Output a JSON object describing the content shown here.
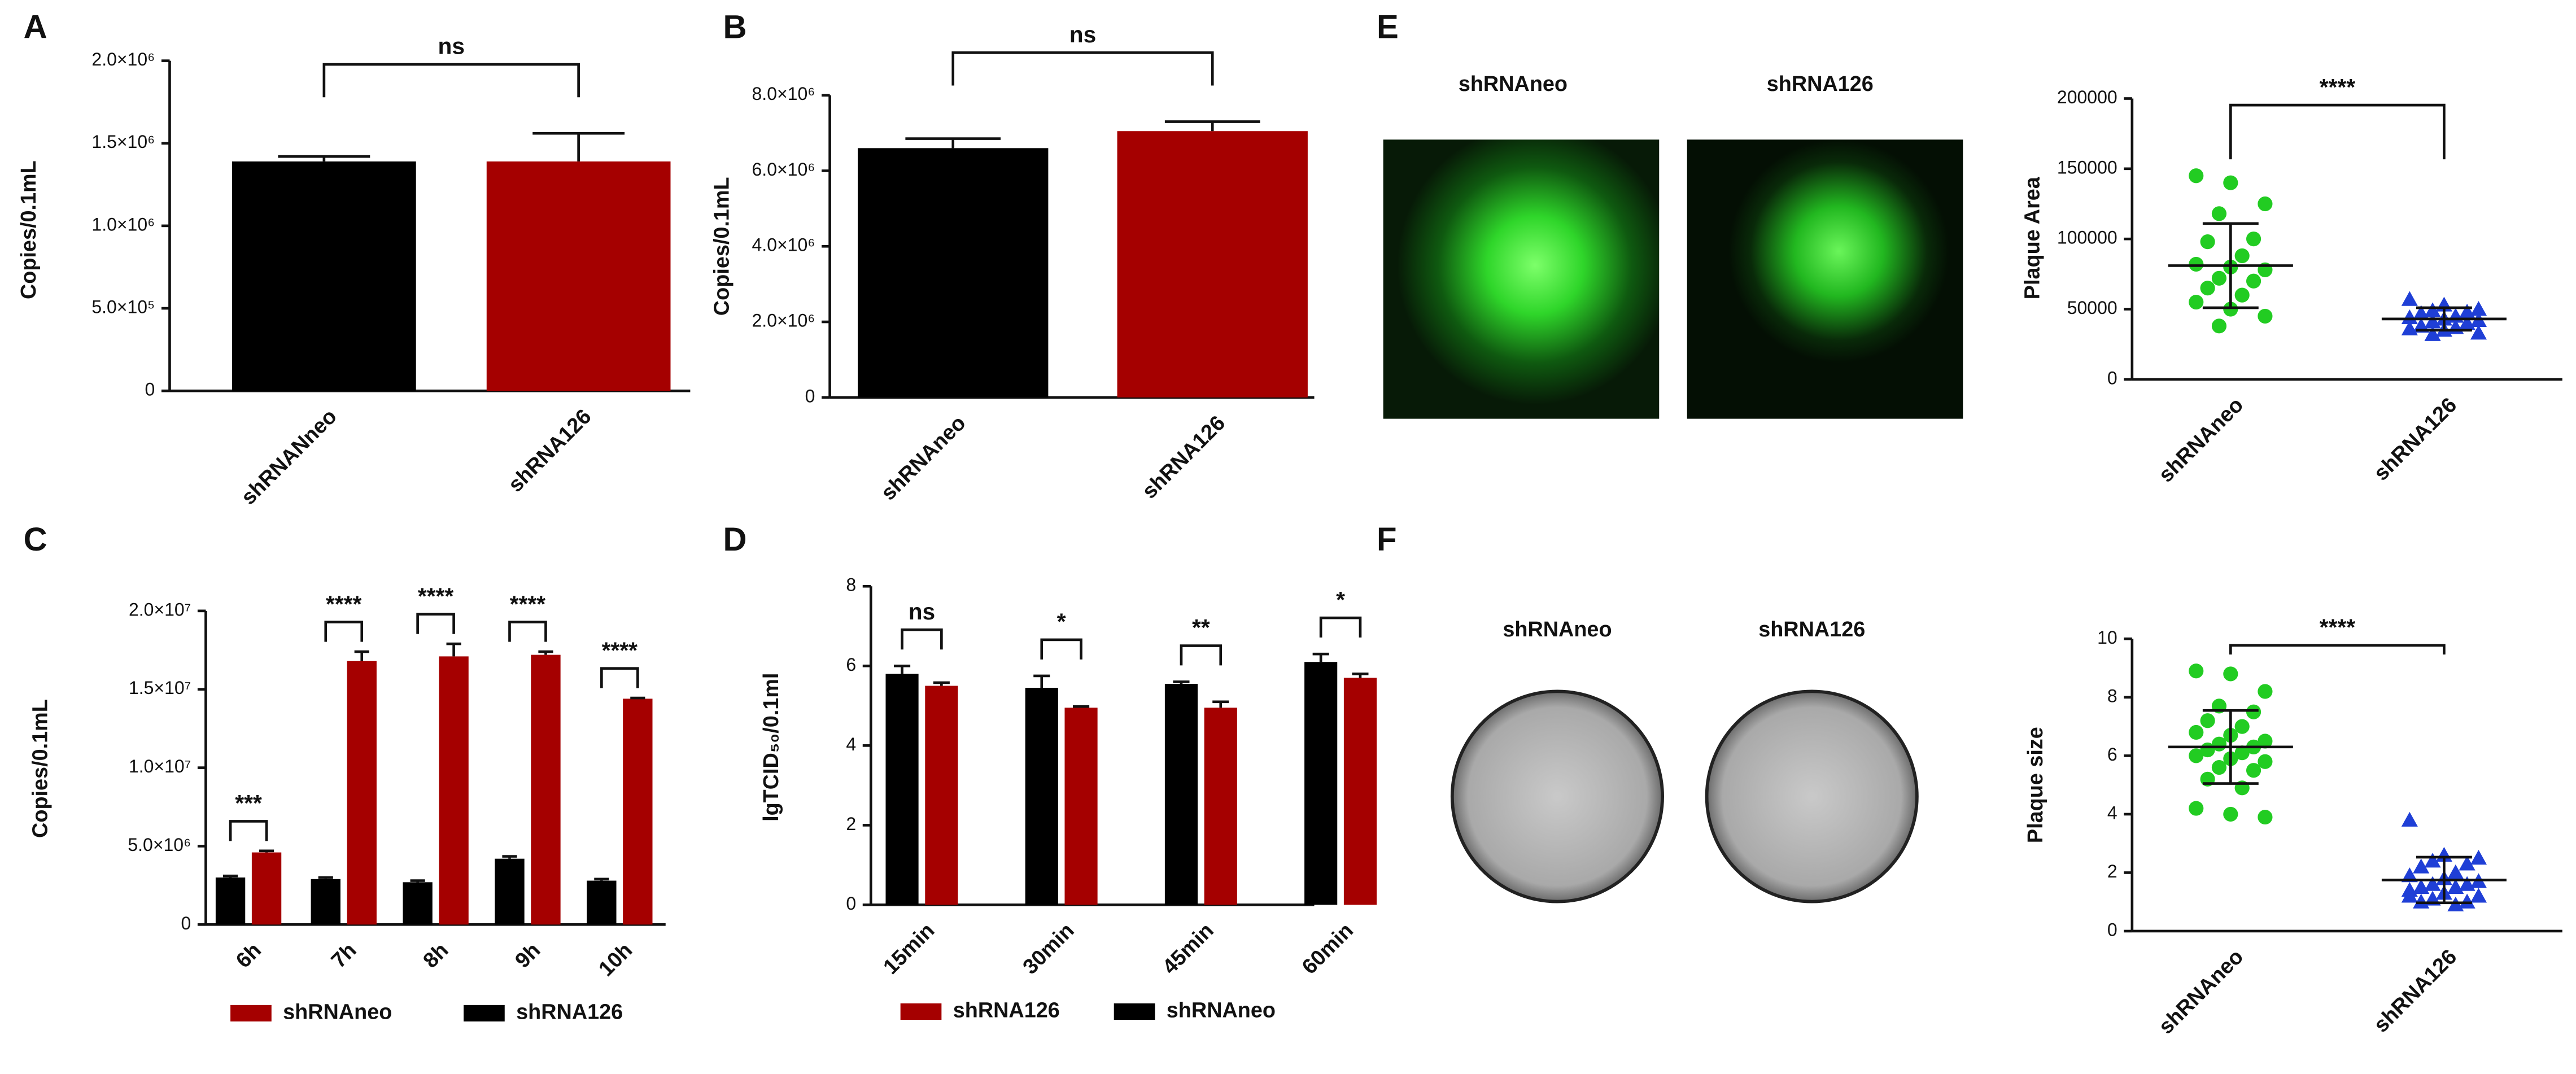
{
  "chart_data": [
    {
      "panel": "A",
      "type": "bar",
      "y_label": "Copies/0.1mL",
      "categories": [
        "shRNANneo",
        "shRNA126"
      ],
      "values": [
        1390000,
        1390000
      ],
      "errors": [
        30000,
        170000
      ],
      "colors": [
        "#000000",
        "#a50000"
      ],
      "annotations": [
        "ns"
      ],
      "ylim": [
        0,
        2000000
      ],
      "yticks": [
        0,
        {
          "value": 500000,
          "label": "5.0×10⁵"
        },
        {
          "value": 1000000,
          "label": "1.0×10⁶"
        },
        {
          "value": 1500000,
          "label": "1.5×10⁶"
        },
        {
          "value": 2000000,
          "label": "2.0×10⁶"
        }
      ]
    },
    {
      "panel": "B",
      "type": "bar",
      "y_label": "Copies/0.1mL",
      "categories": [
        "shRNAneo",
        "shRNA126"
      ],
      "values": [
        6600000,
        7050000
      ],
      "errors": [
        250000,
        250000
      ],
      "colors": [
        "#000000",
        "#a50000"
      ],
      "annotations": [
        "ns"
      ],
      "ylim": [
        0,
        8000000
      ],
      "yticks": [
        0,
        {
          "value": 2000000,
          "label": "2.0×10⁶"
        },
        {
          "value": 4000000,
          "label": "4.0×10⁶"
        },
        {
          "value": 6000000,
          "label": "6.0×10⁶"
        },
        {
          "value": 8000000,
          "label": "8.0×10⁶"
        }
      ]
    },
    {
      "panel": "C",
      "type": "bar",
      "y_label": "Copies/0.1mL",
      "categories": [
        "6h",
        "7h",
        "8h",
        "9h",
        "10h"
      ],
      "series": [
        {
          "name": "shRNAneo",
          "color": "#a50000",
          "values": [
            4600000,
            16800000,
            17100000,
            17200000,
            14400000
          ],
          "errors": [
            100000,
            600000,
            800000,
            200000,
            50000
          ]
        },
        {
          "name": "shRNA126",
          "color": "#000000",
          "values": [
            3000000,
            2900000,
            2700000,
            4200000,
            2800000
          ],
          "errors": [
            100000,
            100000,
            100000,
            150000,
            100000
          ]
        }
      ],
      "annotations": [
        "***",
        "****",
        "****",
        "****",
        "****"
      ],
      "ylim": [
        0,
        20000000
      ],
      "yticks": [
        0,
        {
          "value": 5000000,
          "label": "5.0×10⁶"
        },
        {
          "value": 10000000,
          "label": "1.0×10⁷"
        },
        {
          "value": 15000000,
          "label": "1.5×10⁷"
        },
        {
          "value": 20000000,
          "label": "2.0×10⁷"
        }
      ]
    },
    {
      "panel": "D",
      "type": "bar",
      "y_label": "lgTCID₅₀/0.1ml",
      "categories": [
        "15min",
        "30min",
        "45min",
        "60min"
      ],
      "series": [
        {
          "name": "shRNA126",
          "color": "#a50000",
          "values": [
            5.5,
            4.95,
            4.95,
            5.7
          ],
          "errors": [
            0.08,
            0.03,
            0.15,
            0.1
          ]
        },
        {
          "name": "shRNAneo",
          "color": "#000000",
          "values": [
            5.8,
            5.45,
            5.55,
            6.1
          ],
          "errors": [
            0.2,
            0.3,
            0.05,
            0.2
          ]
        }
      ],
      "annotations": [
        "ns",
        "*",
        "**",
        "*"
      ],
      "ylim": [
        0,
        8
      ],
      "yticks": [
        0,
        2,
        4,
        6,
        8
      ]
    },
    {
      "panel": "E",
      "type": "dotplot",
      "y_label": "Plaque Area",
      "image_labels": [
        "shRNAneo",
        "shRNA126"
      ],
      "categories": [
        "shRNAneo",
        "shRNA126"
      ],
      "groups": [
        {
          "color": "#22cc22",
          "marker": "circle",
          "mean": 81000,
          "sd": 30000,
          "values": [
            145000,
            140000,
            125000,
            118000,
            100000,
            98000,
            88000,
            82000,
            80000,
            78000,
            72000,
            70000,
            65000,
            60000,
            55000,
            50000,
            45000,
            38000
          ]
        },
        {
          "color": "#1f3fd6",
          "marker": "triangle",
          "mean": 43000,
          "sd": 8000,
          "values": [
            57000,
            53000,
            50000,
            49000,
            48000,
            47000,
            45000,
            44000,
            43000,
            42000,
            41000,
            40000,
            38000,
            37000,
            36000,
            35000,
            33000,
            32000
          ]
        }
      ],
      "annotations": [
        "****"
      ],
      "ylim": [
        0,
        200000
      ],
      "yticks": [
        0,
        50000,
        100000,
        150000,
        200000
      ]
    },
    {
      "panel": "F",
      "type": "dotplot",
      "y_label": "Plaque size",
      "image_labels": [
        "shRNAneo",
        "shRNA126"
      ],
      "categories": [
        "shRNAneo",
        "shRNA126"
      ],
      "groups": [
        {
          "color": "#22cc22",
          "marker": "circle",
          "mean": 6.3,
          "sd": 1.25,
          "values": [
            8.9,
            8.8,
            8.2,
            7.7,
            7.5,
            7.2,
            7.0,
            6.8,
            6.7,
            6.5,
            6.4,
            6.3,
            6.2,
            6.1,
            6.0,
            5.9,
            5.8,
            5.6,
            5.5,
            5.2,
            4.9,
            4.2,
            4.0,
            3.9
          ]
        },
        {
          "color": "#1f3fd6",
          "marker": "triangle",
          "mean": 1.75,
          "sd": 0.78,
          "values": [
            3.8,
            2.6,
            2.5,
            2.4,
            2.3,
            2.2,
            2.0,
            1.9,
            1.8,
            1.7,
            1.6,
            1.6,
            1.5,
            1.5,
            1.4,
            1.3,
            1.2,
            1.1,
            1.0,
            1.0,
            0.9,
            1.2
          ]
        }
      ],
      "annotations": [
        "****"
      ],
      "ylim": [
        0,
        10
      ],
      "yticks": [
        0,
        2,
        4,
        6,
        8,
        10
      ]
    }
  ]
}
